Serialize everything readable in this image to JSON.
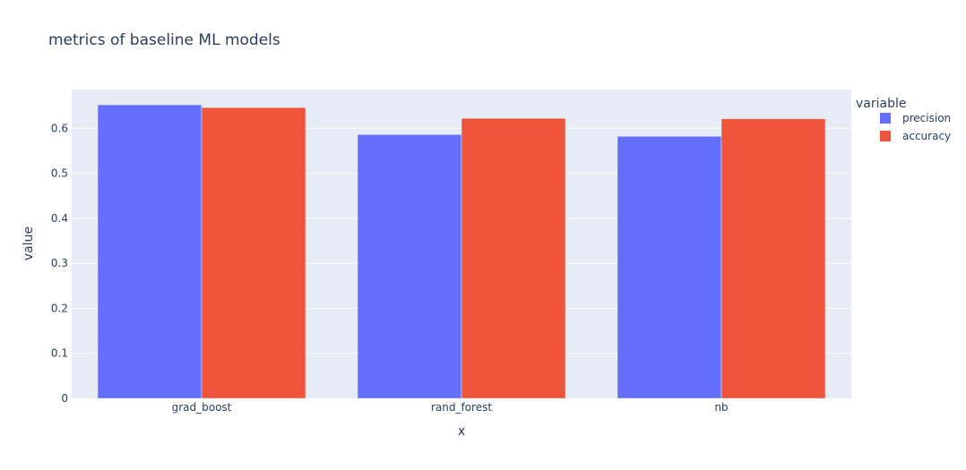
{
  "chart_data": {
    "type": "bar",
    "title": "metrics of baseline ML models",
    "xlabel": "x",
    "ylabel": "value",
    "categories": [
      "grad_boost",
      "rand_forest",
      "nb"
    ],
    "series": [
      {
        "name": "precision",
        "color": "#636efa",
        "values": [
          0.652,
          0.586,
          0.582
        ]
      },
      {
        "name": "accuracy",
        "color": "#ef553b",
        "values": [
          0.646,
          0.622,
          0.621
        ]
      }
    ],
    "ylim": [
      0,
      0.686
    ],
    "yticks": [
      "0",
      "0.1",
      "0.2",
      "0.3",
      "0.4",
      "0.5",
      "0.6"
    ],
    "barmode": "group",
    "grid": true,
    "legend_title": "variable",
    "legend_position": "top-right",
    "plot_background": "#e5ecf6"
  }
}
